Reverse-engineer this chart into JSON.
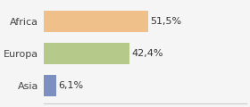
{
  "categories": [
    "Asia",
    "Europa",
    "Africa"
  ],
  "values": [
    6.1,
    42.4,
    51.5
  ],
  "labels": [
    "6,1%",
    "42,4%",
    "51,5%"
  ],
  "bar_colors": [
    "#7b8fc0",
    "#b5c98a",
    "#f0c08a"
  ],
  "background_color": "#f5f5f5",
  "xlim": [
    0,
    100
  ],
  "label_fontsize": 8.0,
  "tick_fontsize": 8.0
}
